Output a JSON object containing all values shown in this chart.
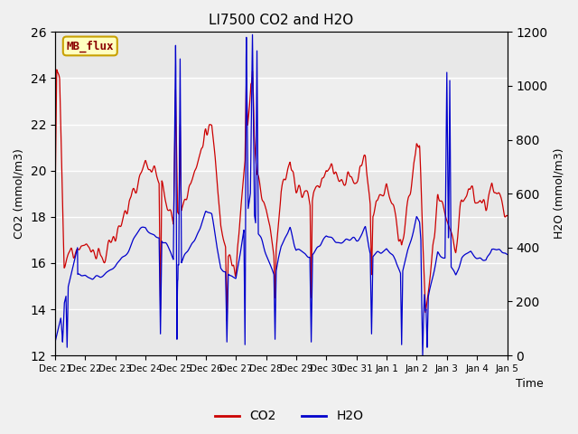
{
  "title": "LI7500 CO2 and H2O",
  "xlabel": "Time",
  "ylabel_left": "CO2 (mmol/m3)",
  "ylabel_right": "H2O (mmol/m3)",
  "ylim_left": [
    12,
    26
  ],
  "ylim_right": [
    0,
    1200
  ],
  "yticks_left": [
    12,
    14,
    16,
    18,
    20,
    22,
    24,
    26
  ],
  "yticks_right": [
    0,
    200,
    400,
    600,
    800,
    1000,
    1200
  ],
  "fig_bg_color": "#f0f0f0",
  "plot_bg_color": "#e8e8e8",
  "plot_bg_light": "#f5f5f5",
  "co2_color": "#cc0000",
  "h2o_color": "#0000cc",
  "annotation_text": "MB_flux",
  "annotation_bg": "#ffffc0",
  "annotation_border": "#c8a000",
  "legend_co2": "CO2",
  "legend_h2o": "H2O",
  "x_tick_labels": [
    "Dec 21",
    "Dec 22",
    "Dec 23",
    "Dec 24",
    "Dec 25",
    "Dec 26",
    "Dec 27",
    "Dec 28",
    "Dec 29",
    "Dec 30",
    "Dec 31",
    "Jan 1",
    "Jan 2",
    "Jan 3",
    "Jan 4",
    "Jan 5"
  ],
  "n_points": 2000,
  "figsize": [
    6.4,
    4.8
  ],
  "dpi": 100
}
